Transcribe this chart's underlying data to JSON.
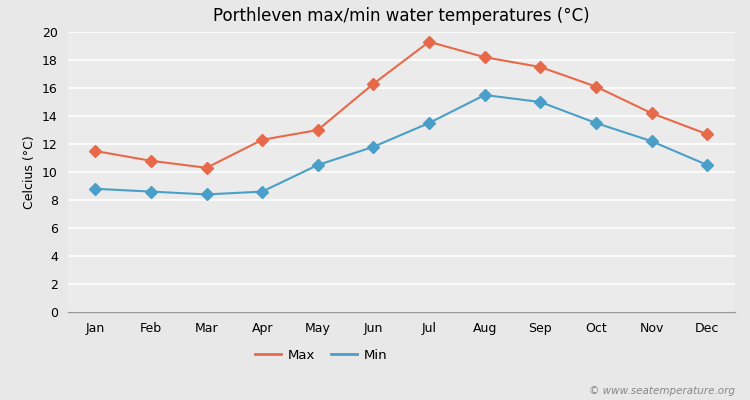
{
  "months": [
    "Jan",
    "Feb",
    "Mar",
    "Apr",
    "May",
    "Jun",
    "Jul",
    "Aug",
    "Sep",
    "Oct",
    "Nov",
    "Dec"
  ],
  "max_temps": [
    11.5,
    10.8,
    10.3,
    12.3,
    13.0,
    16.3,
    19.3,
    18.2,
    17.5,
    16.1,
    14.2,
    12.7
  ],
  "min_temps": [
    8.8,
    8.6,
    8.4,
    8.6,
    10.5,
    11.8,
    13.5,
    15.5,
    15.0,
    13.5,
    12.2,
    10.5
  ],
  "max_color": "#e8694a",
  "min_color": "#4a9fc8",
  "title": "Porthleven max/min water temperatures (°C)",
  "ylabel": "Celcius (°C)",
  "ylim": [
    0,
    20
  ],
  "yticks": [
    0,
    2,
    4,
    6,
    8,
    10,
    12,
    14,
    16,
    18,
    20
  ],
  "bg_color": "#e8e8e8",
  "plot_bg_color": "#ebebeb",
  "grid_color": "#ffffff",
  "watermark": "© www.seatemperature.org",
  "legend_max": "Max",
  "legend_min": "Min"
}
